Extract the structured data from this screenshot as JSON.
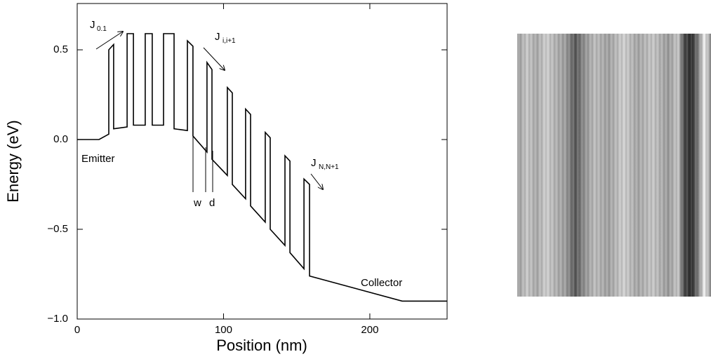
{
  "chart_data": {
    "type": "line",
    "xlabel": "Position (nm)",
    "ylabel": "Energy (eV)",
    "x": [
      0,
      14.9,
      21.6,
      21.6,
      24.9,
      24.9,
      34.1,
      34.1,
      38.4,
      38.4,
      46.5,
      46.5,
      51.3,
      51.3,
      59.0,
      59.0,
      66.2,
      66.2,
      75.3,
      75.3,
      79.1,
      79.1,
      88.7,
      88.7,
      92.1,
      92.1,
      102.6,
      102.6,
      106.0,
      106.0,
      115.1,
      115.1,
      118.5,
      118.5,
      128.5,
      128.5,
      131.9,
      131.9,
      142.0,
      142.0,
      145.4,
      145.4,
      155.0,
      155.0,
      158.8,
      158.8,
      222.1,
      252.8
    ],
    "series": [
      {
        "color": "#000000",
        "values": [
          0,
          0,
          0.03,
          0.5,
          0.53,
          0.06,
          0.07,
          0.59,
          0.59,
          0.08,
          0.08,
          0.59,
          0.59,
          0.08,
          0.08,
          0.59,
          0.59,
          0.06,
          0.05,
          0.55,
          0.52,
          0.02,
          -0.07,
          0.43,
          0.39,
          -0.11,
          -0.2,
          0.29,
          0.26,
          -0.25,
          -0.33,
          0.17,
          0.14,
          -0.37,
          -0.46,
          0.04,
          0.01,
          -0.5,
          -0.59,
          -0.09,
          -0.12,
          -0.63,
          -0.72,
          -0.22,
          -0.25,
          -0.76,
          -0.9,
          -0.9
        ]
      }
    ],
    "xlim": [
      0,
      252.8
    ],
    "ylim": [
      -1,
      0.758
    ],
    "xticks": [
      0,
      100,
      200
    ],
    "yticks": [
      {
        "value": -1,
        "label": "−1.0"
      },
      {
        "value": -0.5,
        "label": "−0.5"
      },
      {
        "value": 0,
        "label": "0.0"
      },
      0.5
    ],
    "annotations": [
      {
        "text": "J",
        "sub": "0.1"
      },
      {
        "text": "J",
        "sub": "i,i+1"
      },
      {
        "text": "J",
        "sub": "N,N+1"
      },
      {
        "text": "Emitter"
      },
      {
        "text": "Collector"
      },
      {
        "text": "w"
      },
      {
        "text": "d"
      }
    ]
  }
}
